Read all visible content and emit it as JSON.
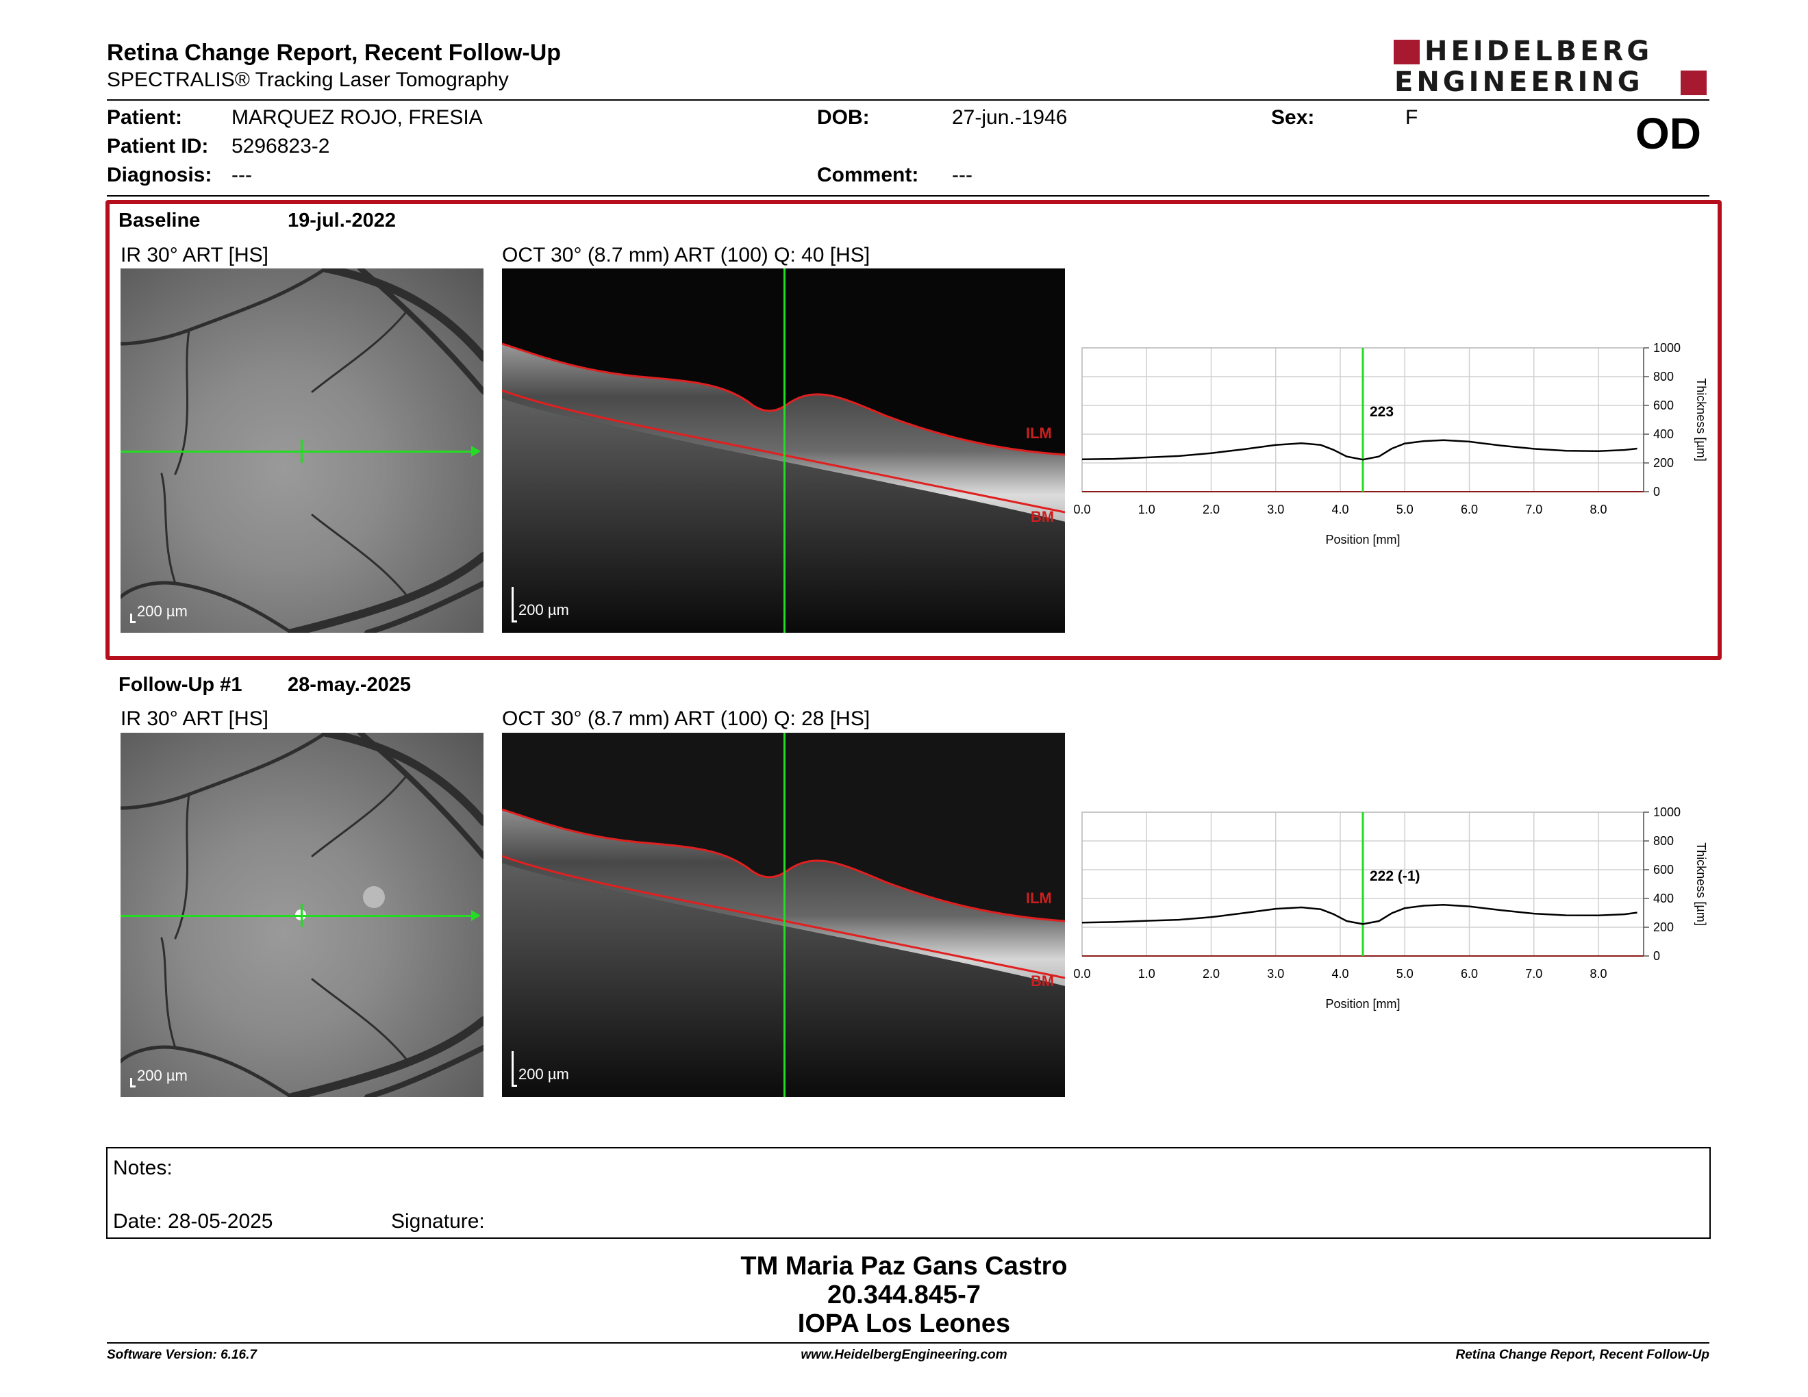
{
  "header": {
    "title": "Retina Change Report, Recent Follow-Up",
    "subtitle": "SPECTRALIS® Tracking Laser Tomography",
    "logo_line1": "HEIDELBERG",
    "logo_line2": "ENGINEERING",
    "eye": "OD"
  },
  "patient": {
    "patient_label": "Patient:",
    "patient_value": "MARQUEZ ROJO, FRESIA",
    "id_label": "Patient ID:",
    "id_value": "5296823-2",
    "diagnosis_label": "Diagnosis:",
    "diagnosis_value": "---",
    "dob_label": "DOB:",
    "dob_value": "27-jun.-1946",
    "comment_label": "Comment:",
    "comment_value": "---",
    "sex_label": "Sex:",
    "sex_value": "F"
  },
  "colors": {
    "frame": "#b50f1d",
    "scan_line": "#22dd22",
    "layer_line": "#e02020",
    "logo": "#a6192e"
  },
  "exams": [
    {
      "label": "Baseline",
      "date": "19-jul.-2022",
      "ir_title": "IR 30° ART [HS]",
      "oct_title": "OCT 30° (8.7 mm) ART (100) Q: 40 [HS]",
      "ir_scale": "200 µm",
      "oct_scale": "200 µm",
      "ilm": "ILM",
      "bm": "BM",
      "marker": "223"
    },
    {
      "label": "Follow-Up #1",
      "date": "28-may.-2025",
      "ir_title": "IR 30° ART [HS]",
      "oct_title": "OCT 30° (8.7 mm) ART (100) Q: 28 [HS]",
      "ir_scale": "200 µm",
      "oct_scale": "200 µm",
      "ilm": "ILM",
      "bm": "BM",
      "marker": "222 (-1)"
    }
  ],
  "chart_data": [
    {
      "type": "line",
      "xlabel": "Position [mm]",
      "ylabel": "Thickness [µm]",
      "xlim": [
        0,
        8.7
      ],
      "ylim": [
        0,
        1000
      ],
      "x_ticks": [
        "0.0",
        "1.0",
        "2.0",
        "3.0",
        "4.0",
        "5.0",
        "6.0",
        "7.0",
        "8.0"
      ],
      "y_ticks": [
        "0",
        "200",
        "400",
        "600",
        "800",
        "1000"
      ],
      "grid": true,
      "marker_x": 4.35,
      "marker_label": "223",
      "x": [
        0,
        0.5,
        1,
        1.5,
        2,
        2.5,
        3,
        3.4,
        3.7,
        3.9,
        4.1,
        4.35,
        4.6,
        4.8,
        5.0,
        5.3,
        5.6,
        6.0,
        6.5,
        7.0,
        7.5,
        8.0,
        8.4,
        8.6
      ],
      "values": [
        225,
        228,
        238,
        248,
        268,
        295,
        325,
        337,
        325,
        290,
        245,
        223,
        245,
        300,
        335,
        352,
        358,
        348,
        320,
        298,
        285,
        282,
        290,
        300
      ]
    },
    {
      "type": "line",
      "xlabel": "Position [mm]",
      "ylabel": "Thickness [µm]",
      "xlim": [
        0,
        8.7
      ],
      "ylim": [
        0,
        1000
      ],
      "x_ticks": [
        "0.0",
        "1.0",
        "2.0",
        "3.0",
        "4.0",
        "5.0",
        "6.0",
        "7.0",
        "8.0"
      ],
      "y_ticks": [
        "0",
        "200",
        "400",
        "600",
        "800",
        "1000"
      ],
      "grid": true,
      "marker_x": 4.35,
      "marker_label": "222 (-1)",
      "x": [
        0,
        0.5,
        1,
        1.5,
        2,
        2.5,
        3,
        3.4,
        3.7,
        3.9,
        4.1,
        4.35,
        4.6,
        4.8,
        5.0,
        5.3,
        5.6,
        6.0,
        6.5,
        7.0,
        7.5,
        8.0,
        8.4,
        8.6
      ],
      "values": [
        232,
        236,
        245,
        252,
        270,
        298,
        328,
        338,
        325,
        290,
        243,
        222,
        243,
        298,
        333,
        350,
        356,
        345,
        318,
        295,
        283,
        282,
        290,
        302
      ]
    }
  ],
  "notes": {
    "notes_label": "Notes:",
    "date_label": "Date: 28-05-2025",
    "signature_label": "Signature:"
  },
  "signature_block": {
    "name": "TM Maria Paz Gans Castro",
    "id": "20.344.845-7",
    "org": "IOPA Los Leones"
  },
  "footer": {
    "left": "Software Version: 6.16.7",
    "center": "www.HeidelbergEngineering.com",
    "right": "Retina Change Report, Recent Follow-Up"
  }
}
